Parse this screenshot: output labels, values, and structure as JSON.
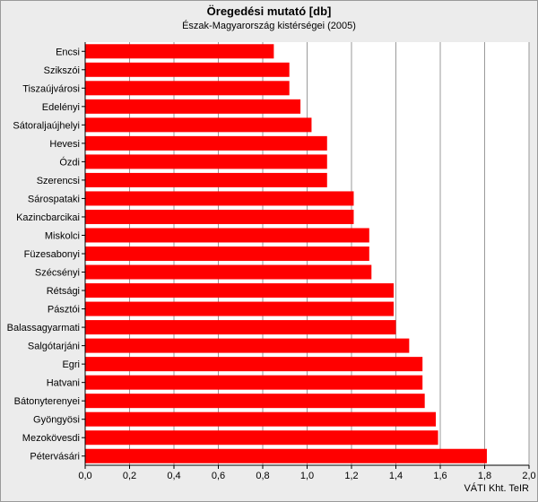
{
  "chart_data": {
    "type": "bar",
    "orientation": "horizontal",
    "title": "Öregedési mutató [db]",
    "subtitle": "Észak-Magyarország kistérségei (2005)",
    "source": "VÁTI Kht. TeIR",
    "categories": [
      "Encsi",
      "Szikszói",
      "Tiszaújvárosi",
      "Edelényi",
      "Sátoraljaújhelyi",
      "Hevesi",
      "Ózdi",
      "Szerencsi",
      "Sárospataki",
      "Kazincbarcikai",
      "Miskolci",
      "Füzesabonyi",
      "Szécsényi",
      "Rétsági",
      "Pásztói",
      "Balassagyarmati",
      "Salgótarjáni",
      "Egri",
      "Hatvani",
      "Bátonyterenyei",
      "Gyöngyösi",
      "Mezokövesdi",
      "Pétervásári"
    ],
    "values": [
      0.85,
      0.92,
      0.92,
      0.97,
      1.02,
      1.09,
      1.09,
      1.09,
      1.21,
      1.21,
      1.28,
      1.28,
      1.29,
      1.39,
      1.39,
      1.4,
      1.46,
      1.52,
      1.52,
      1.53,
      1.58,
      1.59,
      1.81
    ],
    "xlim": [
      0,
      2.0
    ],
    "xticks": [
      "0,0",
      "0,2",
      "0,4",
      "0,6",
      "0,8",
      "1,0",
      "1,2",
      "1,4",
      "1,6",
      "1,8",
      "2,0"
    ],
    "grid": true,
    "bar_color": "#ff0000",
    "plot_background": "#ffffff",
    "grid_color": "#9a9a9a"
  }
}
